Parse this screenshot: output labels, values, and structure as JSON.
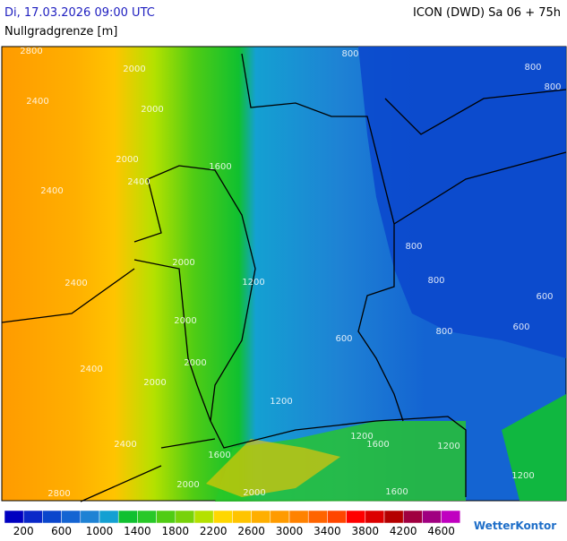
{
  "header": {
    "datetime": "Di, 17.03.2026 09:00 UTC",
    "model": "ICON (DWD) Sa 06 + 75h",
    "parameter": "Nullgradgrenze [m]"
  },
  "map": {
    "contour_labels": [
      2800,
      2400,
      2000,
      2000,
      2000,
      2400,
      2400,
      1600,
      2000,
      2400,
      1200,
      2000,
      2000,
      2400,
      2000,
      1200,
      2400,
      1600,
      2000,
      2800,
      2000,
      1200,
      1600,
      1200,
      1200,
      1600,
      800,
      800,
      800,
      800,
      800,
      600,
      600,
      800,
      600
    ]
  },
  "legend": {
    "colors": [
      "#0000c0",
      "#0a28c8",
      "#0a46cc",
      "#1464d2",
      "#1e82d4",
      "#14a0d2",
      "#10c030",
      "#28c828",
      "#50cc14",
      "#78d20a",
      "#b4e100",
      "#ffd700",
      "#ffc400",
      "#ffaf00",
      "#ff9b00",
      "#ff8200",
      "#ff6400",
      "#ff4600",
      "#ff0000",
      "#dc0000",
      "#b40000",
      "#a00040",
      "#a00080",
      "#c000c0"
    ],
    "labels": [
      200,
      600,
      1000,
      1400,
      1800,
      2200,
      2600,
      3000,
      3400,
      3800,
      4200,
      4600
    ]
  },
  "logo": "WetterKontor"
}
